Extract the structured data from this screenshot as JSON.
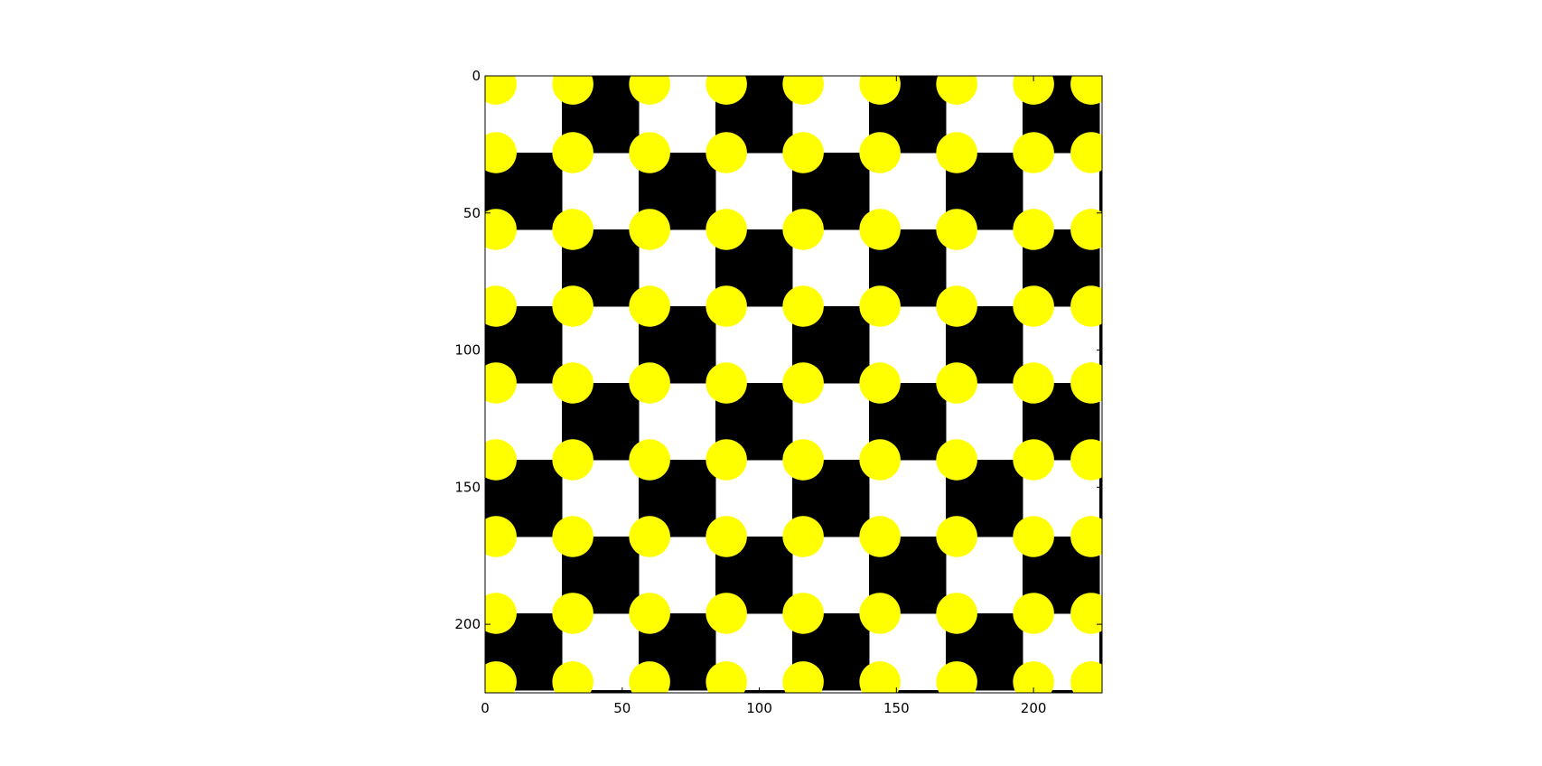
{
  "chart_data": {
    "type": "heatmap",
    "title": "",
    "xlabel": "",
    "ylabel": "",
    "image_size": [
      225,
      225
    ],
    "xlim": [
      0,
      225
    ],
    "ylim": [
      225,
      0
    ],
    "y_axis_inverted": true,
    "x_ticks": [
      0,
      50,
      100,
      150,
      200
    ],
    "y_ticks": [
      0,
      50,
      100,
      150,
      200
    ],
    "x_tick_labels": [
      "0",
      "50",
      "100",
      "150",
      "200"
    ],
    "y_tick_labels": [
      "0",
      "50",
      "100",
      "150",
      "200"
    ],
    "grid": false,
    "pattern": {
      "description": "checkerboard of black and white squares with yellow dots at the square corners",
      "square_size": 28,
      "first_cell_top_left": "white",
      "dot_centers_x": [
        4,
        32,
        60,
        88,
        116,
        144,
        172,
        200,
        221
      ],
      "dot_centers_y": [
        3,
        28,
        56,
        84,
        112,
        140,
        168,
        196,
        221
      ],
      "dot_diameter": 15
    },
    "colors": {
      "dark_cell": "#000000",
      "light_cell": "#ffffff",
      "dot": "#ffff00",
      "frame": "#000000"
    }
  }
}
